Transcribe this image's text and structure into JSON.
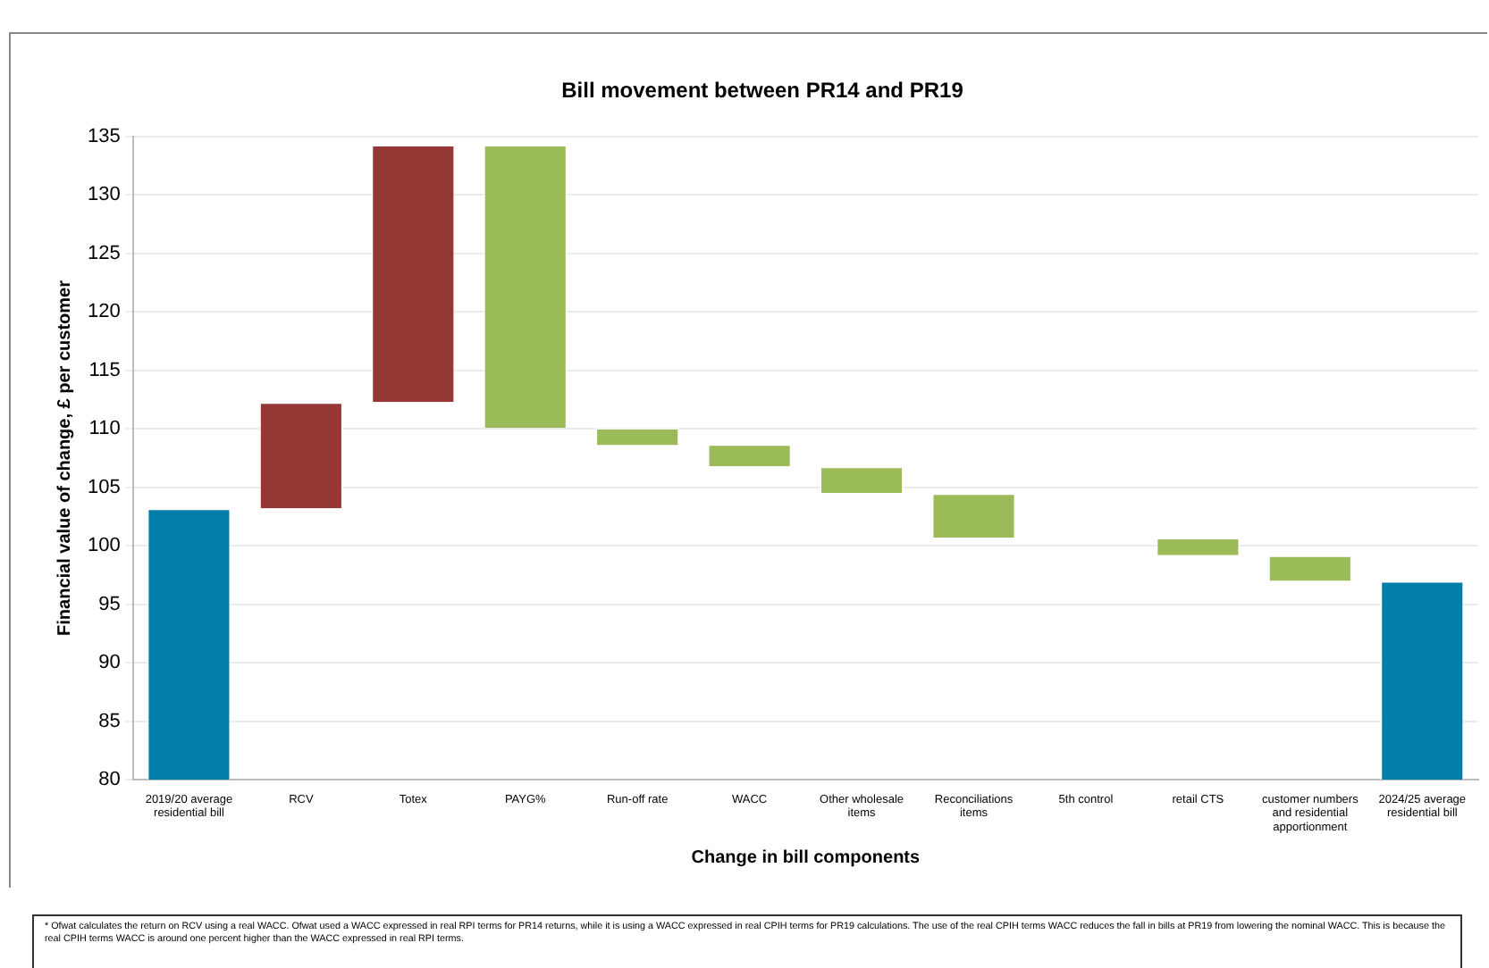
{
  "chart_data": {
    "type": "bar",
    "title": "Bill movement between PR14 and PR19",
    "xlabel": "Change in bill components",
    "ylabel": "Financial value of change, £ per customer",
    "categories": [
      "2019/20 average residential bill",
      "RCV",
      "Totex",
      "PAYG%",
      "Run-off rate",
      "WACC",
      "Other wholesale items",
      "Reconciliations items",
      "5th control",
      "retail CTS",
      "customer numbers and residential apportionment",
      "2024/25 average residential bill"
    ],
    "base": [
      80,
      103.2,
      112.3,
      134.3,
      110.1,
      108.7,
      106.8,
      104.5,
      null,
      100.7,
      99.2,
      80
    ],
    "values": [
      23.2,
      9.1,
      22.0,
      -24.2,
      -1.5,
      -1.9,
      -2.3,
      -3.8,
      null,
      -1.5,
      -2.2,
      17.0
    ],
    "colors": [
      "#007ea7",
      "#953735",
      "#953735",
      "#9bbb59",
      "#9bbb59",
      "#9bbb59",
      "#9bbb59",
      "#9bbb59",
      "#9bbb59",
      "#9bbb59",
      "#9bbb59",
      "#007ea7"
    ],
    "ylim": [
      80,
      135
    ],
    "yticks": [
      80,
      85,
      90,
      95,
      100,
      105,
      110,
      115,
      120,
      125,
      130,
      135
    ],
    "grid": "y",
    "legend": false,
    "annotations": [
      "* Ofwat calculates the return on RCV using a real WACC. Ofwat used a WACC expressed in real RPI terms for PR14 returns, while it is using a WACC expressed in real CPIH terms for PR19 calculations. The use of the real CPIH terms WACC reduces the fall in bills at PR19 from lowering the nominal WACC. This is because the real CPIH terms WACC is around one percent higher than the WACC expressed in real RPI terms."
    ]
  }
}
